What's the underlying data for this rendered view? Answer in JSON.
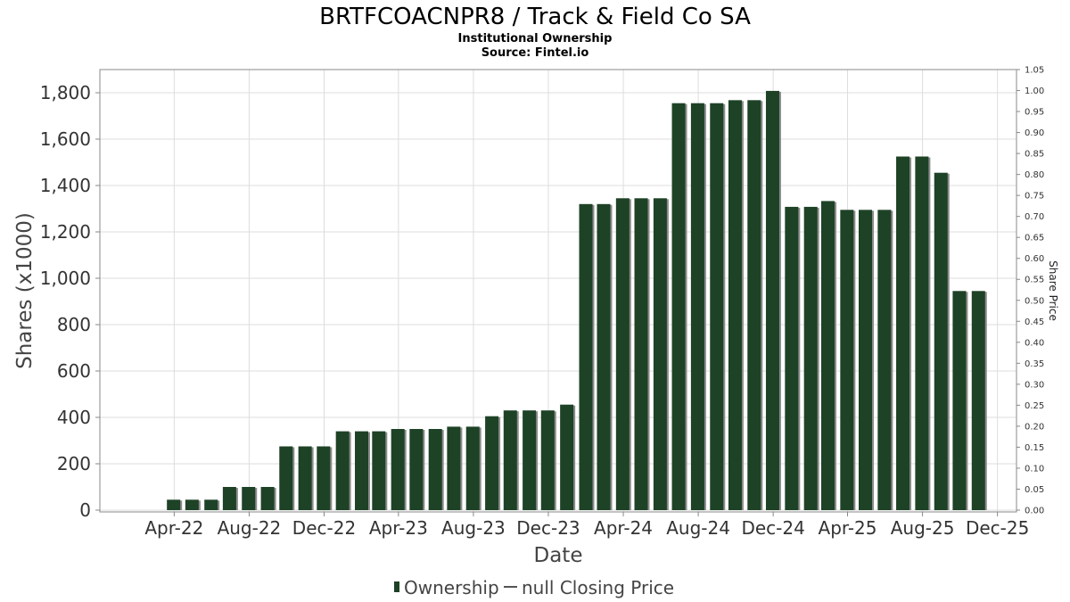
{
  "header": {
    "title": "BRTFCOACNPR8 / Track & Field Co SA",
    "subtitle": "Institutional Ownership",
    "source": "Source: Fintel.io"
  },
  "colors": {
    "bar": "#1e4226",
    "bar_shadow": "#8c8c8c",
    "grid": "#dddddd",
    "frame": "#888888"
  },
  "chart_data": {
    "type": "bar",
    "xlabel": "Date",
    "ylabel": "Shares (x1000)",
    "y2label": "Share Price",
    "ylim": [
      0,
      1900
    ],
    "y2lim": [
      0,
      1.05
    ],
    "yticks": [
      0,
      200,
      400,
      600,
      800,
      1000,
      1200,
      1400,
      1600,
      1800
    ],
    "ytick_labels": [
      "0",
      "200",
      "400",
      "600",
      "800",
      "1,000",
      "1,200",
      "1,400",
      "1,600",
      "1,800"
    ],
    "y2ticks": [
      0,
      0.05,
      0.1,
      0.15,
      0.2,
      0.25,
      0.3,
      0.35,
      0.4,
      0.45,
      0.5,
      0.55,
      0.6,
      0.65,
      0.7,
      0.75,
      0.8,
      0.85,
      0.9,
      0.95,
      1.0,
      1.05
    ],
    "y2tick_labels": [
      "0.00",
      "0.05",
      "0.10",
      "0.15",
      "0.20",
      "0.25",
      "0.30",
      "0.35",
      "0.40",
      "0.45",
      "0.50",
      "0.55",
      "0.60",
      "0.65",
      "0.70",
      "0.75",
      "0.80",
      "0.85",
      "0.90",
      "0.95",
      "1.00",
      "1.05"
    ],
    "x_range": [
      "2021-12-01",
      "2026-01-01"
    ],
    "xticks": [
      "2022-04-01",
      "2022-08-01",
      "2022-12-01",
      "2023-04-01",
      "2023-08-01",
      "2023-12-01",
      "2024-04-01",
      "2024-08-01",
      "2024-12-01",
      "2025-04-01",
      "2025-08-01",
      "2025-12-01"
    ],
    "xtick_labels": [
      "Apr-22",
      "Aug-22",
      "Dec-22",
      "Apr-23",
      "Aug-23",
      "Dec-23",
      "Apr-24",
      "Aug-24",
      "Dec-24",
      "Apr-25",
      "Aug-25",
      "Dec-25"
    ],
    "grid": true,
    "legend_position": "bottom",
    "series": [
      {
        "name": "Ownership",
        "dates": [
          "2022-03-31",
          "2022-04-30",
          "2022-05-31",
          "2022-06-30",
          "2022-07-31",
          "2022-08-31",
          "2022-09-30",
          "2022-10-31",
          "2022-11-30",
          "2022-12-31",
          "2023-01-31",
          "2023-02-28",
          "2023-03-31",
          "2023-04-30",
          "2023-05-31",
          "2023-06-30",
          "2023-07-31",
          "2023-08-31",
          "2023-09-30",
          "2023-10-31",
          "2023-11-30",
          "2023-12-31",
          "2024-01-31",
          "2024-02-29",
          "2024-03-31",
          "2024-04-30",
          "2024-05-31",
          "2024-06-30",
          "2024-07-31",
          "2024-08-31",
          "2024-09-30",
          "2024-10-31",
          "2024-11-30",
          "2024-12-31",
          "2025-01-31",
          "2025-02-28",
          "2025-03-31",
          "2025-04-30",
          "2025-05-31",
          "2025-06-30",
          "2025-07-31",
          "2025-08-31",
          "2025-09-30",
          "2025-10-31"
        ],
        "values": [
          45,
          45,
          45,
          100,
          100,
          100,
          275,
          275,
          275,
          340,
          340,
          340,
          350,
          350,
          350,
          360,
          360,
          405,
          430,
          430,
          430,
          455,
          1320,
          1320,
          1345,
          1345,
          1345,
          1755,
          1755,
          1755,
          1768,
          1768,
          1808,
          1308,
          1308,
          1333,
          1295,
          1295,
          1295,
          1525,
          1525,
          1455,
          945,
          945
        ]
      },
      {
        "name": "null Closing Price",
        "values": []
      }
    ]
  }
}
